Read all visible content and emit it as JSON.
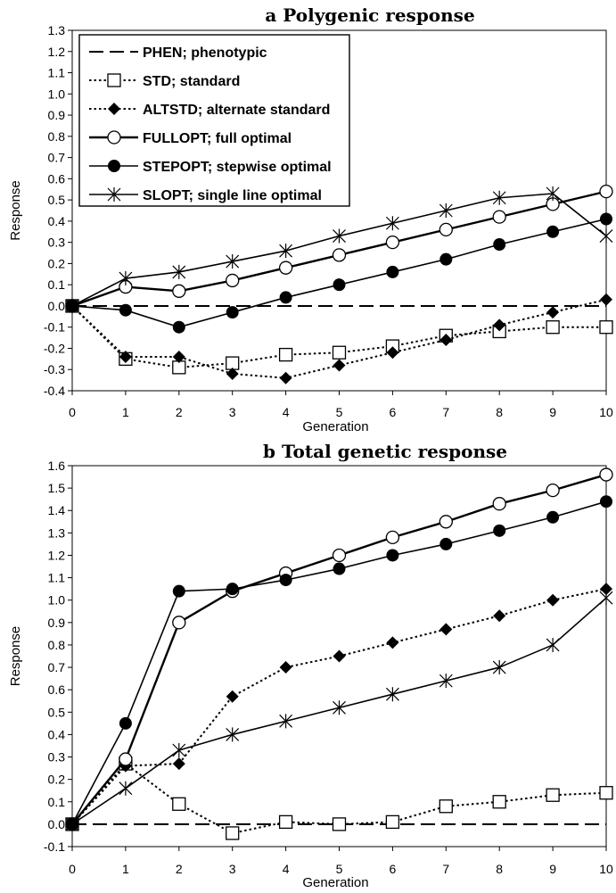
{
  "chart_data": [
    {
      "type": "line",
      "title": "a   Polygenic response",
      "xlabel": "Generation",
      "ylabel": "Response",
      "x": [
        0,
        1,
        2,
        3,
        4,
        5,
        6,
        7,
        8,
        9,
        10
      ],
      "xlim": [
        0,
        10
      ],
      "ylim": [
        -0.4,
        1.3
      ],
      "yticks": [
        "1.3",
        "1.2",
        "1.1",
        "1.0",
        "0.9",
        "0.8",
        "0.7",
        "0.6",
        "0.5",
        "0.4",
        "0.3",
        "0.2",
        "0.1",
        "0.0",
        "-0.1",
        "-0.2",
        "-0.3",
        "-0.4"
      ],
      "legend_position": "top-left",
      "series": [
        {
          "name": "PHEN; phenotypic",
          "style": "dashed",
          "marker": "none",
          "values": [
            0,
            0,
            0,
            0,
            0,
            0,
            0,
            0,
            0,
            0,
            0
          ]
        },
        {
          "name": "STD; standard",
          "style": "dotted",
          "marker": "open-square",
          "values": [
            0,
            -0.25,
            -0.29,
            -0.27,
            -0.23,
            -0.22,
            -0.19,
            -0.14,
            -0.12,
            -0.1,
            -0.1
          ]
        },
        {
          "name": "ALTSTD; alternate standard",
          "style": "dotted",
          "marker": "filled-diamond",
          "values": [
            0,
            -0.24,
            -0.24,
            -0.32,
            -0.34,
            -0.28,
            -0.22,
            -0.16,
            -0.09,
            -0.03,
            0.03
          ]
        },
        {
          "name": "FULLOPT; full optimal",
          "style": "solid-thick",
          "marker": "open-circle",
          "values": [
            0,
            0.09,
            0.07,
            0.12,
            0.18,
            0.24,
            0.3,
            0.36,
            0.42,
            0.48,
            0.54
          ]
        },
        {
          "name": "STEPOPT; stepwise optimal",
          "style": "solid",
          "marker": "filled-circle",
          "values": [
            0,
            -0.02,
            -0.1,
            -0.03,
            0.04,
            0.1,
            0.16,
            0.22,
            0.29,
            0.35,
            0.41
          ]
        },
        {
          "name": "SLOPT; single line optimal",
          "style": "solid",
          "marker": "star",
          "values": [
            0,
            0.13,
            0.16,
            0.21,
            0.26,
            0.33,
            0.39,
            0.45,
            0.51,
            0.53,
            0.33
          ]
        }
      ]
    },
    {
      "type": "line",
      "title": "b   Total genetic response",
      "xlabel": "Generation",
      "ylabel": "Response",
      "x": [
        0,
        1,
        2,
        3,
        4,
        5,
        6,
        7,
        8,
        9,
        10
      ],
      "xlim": [
        0,
        10
      ],
      "ylim": [
        -0.1,
        1.6
      ],
      "yticks": [
        "1.6",
        "1.5",
        "1.4",
        "1.3",
        "1.2",
        "1.1",
        "1.0",
        "0.9",
        "0.8",
        "0.7",
        "0.6",
        "0.5",
        "0.4",
        "0.3",
        "0.2",
        "0.1",
        "0.0",
        "-0.1"
      ],
      "series": [
        {
          "name": "PHEN; phenotypic",
          "style": "dashed",
          "marker": "none",
          "values": [
            0,
            0,
            0,
            0,
            0,
            0,
            0,
            0,
            0,
            0,
            0
          ]
        },
        {
          "name": "STD; standard",
          "style": "dotted",
          "marker": "open-square",
          "values": [
            0,
            0.27,
            0.09,
            -0.04,
            0.01,
            0.0,
            0.01,
            0.08,
            0.1,
            0.13,
            0.14
          ]
        },
        {
          "name": "ALTSTD; alternate standard",
          "style": "dotted",
          "marker": "filled-diamond",
          "values": [
            0,
            0.26,
            0.27,
            0.57,
            0.7,
            0.75,
            0.81,
            0.87,
            0.93,
            1.0,
            1.05
          ]
        },
        {
          "name": "FULLOPT; full optimal",
          "style": "solid-thick",
          "marker": "open-circle",
          "values": [
            0,
            0.29,
            0.9,
            1.04,
            1.12,
            1.2,
            1.28,
            1.35,
            1.43,
            1.49,
            1.56
          ]
        },
        {
          "name": "STEPOPT; stepwise optimal",
          "style": "solid",
          "marker": "filled-circle",
          "values": [
            0,
            0.45,
            1.04,
            1.05,
            1.09,
            1.14,
            1.2,
            1.25,
            1.31,
            1.37,
            1.44
          ]
        },
        {
          "name": "SLOPT; single line optimal",
          "style": "solid",
          "marker": "star",
          "values": [
            0,
            0.16,
            0.33,
            0.4,
            0.46,
            0.52,
            0.58,
            0.64,
            0.7,
            0.8,
            1.01
          ]
        }
      ]
    }
  ]
}
